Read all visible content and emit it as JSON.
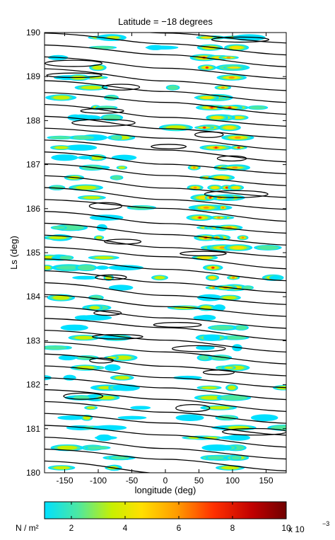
{
  "chart_data": {
    "type": "heatmap",
    "title": "Latitude = −18 degrees",
    "xlabel": "longitude (deg)",
    "ylabel": "Ls (deg)",
    "xlim": [
      -180,
      180
    ],
    "ylim": [
      180,
      190
    ],
    "x_ticks": [
      -150,
      -100,
      -50,
      0,
      50,
      100,
      150
    ],
    "y_ticks": [
      180,
      181,
      182,
      183,
      184,
      185,
      186,
      187,
      188,
      189,
      190
    ],
    "colorbar": {
      "label": "N / m²",
      "ticks": [
        2,
        4,
        6,
        8,
        10
      ],
      "multiplier": "x 10",
      "exponent": "−3",
      "range": [
        1,
        10
      ],
      "colormap": [
        "#00e0ff",
        "#4ee8a0",
        "#c8f000",
        "#ffe000",
        "#ff9a00",
        "#ff3000",
        "#c00000",
        "#700000"
      ]
    },
    "contours": {
      "color": "#000000",
      "description_units": "contour lines overlaid on colored field"
    }
  }
}
